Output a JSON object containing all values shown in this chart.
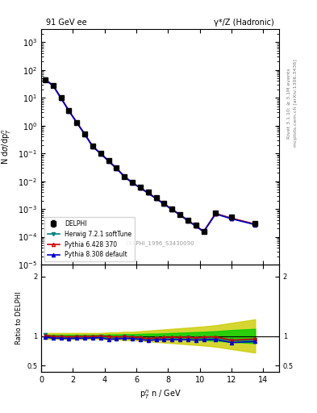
{
  "title_left": "91 GeV ee",
  "title_right": "γ*/Z (Hadronic)",
  "ylabel_main": "N dσ/dp$_T^n$",
  "ylabel_ratio": "Ratio to DELPHI",
  "xlabel": "p$_T^n$ n / GeV",
  "watermark": "DELPHI_1996_S3430090",
  "right_label_top": "Rivet 3.1.10; ≥ 3.1M events",
  "right_label_bottom": "mcplots.cern.ch [arXiv:1306.3436]",
  "data_x": [
    0.25,
    0.75,
    1.25,
    1.75,
    2.25,
    2.75,
    3.25,
    3.75,
    4.25,
    4.75,
    5.25,
    5.75,
    6.25,
    6.75,
    7.25,
    7.75,
    8.25,
    8.75,
    9.25,
    9.75,
    10.25,
    11.0,
    12.0,
    13.5
  ],
  "data_y": [
    45.0,
    28.0,
    10.0,
    3.5,
    1.3,
    0.5,
    0.18,
    0.1,
    0.055,
    0.03,
    0.015,
    0.009,
    0.006,
    0.004,
    0.0025,
    0.0016,
    0.001,
    0.00065,
    0.0004,
    0.00026,
    0.00016,
    0.0007,
    0.0005,
    0.0003
  ],
  "data_yerr": [
    2.0,
    1.5,
    0.5,
    0.2,
    0.07,
    0.03,
    0.012,
    0.007,
    0.004,
    0.002,
    0.001,
    0.0006,
    0.0004,
    0.0003,
    0.00018,
    0.00012,
    8e-05,
    5e-05,
    3e-05,
    2e-05,
    1e-05,
    6e-05,
    5e-05,
    4e-05
  ],
  "herwig_x": [
    0.25,
    0.75,
    1.25,
    1.75,
    2.25,
    2.75,
    3.25,
    3.75,
    4.25,
    4.75,
    5.25,
    5.75,
    6.25,
    6.75,
    7.25,
    7.75,
    8.25,
    8.75,
    9.25,
    9.75,
    10.25,
    11.0,
    12.0,
    13.5
  ],
  "herwig_y": [
    46.0,
    27.5,
    9.8,
    3.4,
    1.28,
    0.49,
    0.177,
    0.099,
    0.054,
    0.029,
    0.0148,
    0.0088,
    0.0058,
    0.0038,
    0.0024,
    0.00155,
    0.00097,
    0.00063,
    0.00039,
    0.00025,
    0.000155,
    0.00068,
    0.00046,
    0.00028
  ],
  "pythia6_x": [
    0.25,
    0.75,
    1.25,
    1.75,
    2.25,
    2.75,
    3.25,
    3.75,
    4.25,
    4.75,
    5.25,
    5.75,
    6.25,
    6.75,
    7.25,
    7.75,
    8.25,
    8.75,
    9.25,
    9.75,
    10.25,
    11.0,
    12.0,
    13.5
  ],
  "pythia6_y": [
    45.5,
    27.8,
    9.9,
    3.45,
    1.29,
    0.495,
    0.179,
    0.1,
    0.0545,
    0.0295,
    0.0149,
    0.00885,
    0.00585,
    0.00382,
    0.00242,
    0.00156,
    0.00098,
    0.000635,
    0.000392,
    0.000252,
    0.000157,
    0.00069,
    0.000465,
    0.000285
  ],
  "pythia8_x": [
    0.25,
    0.75,
    1.25,
    1.75,
    2.25,
    2.75,
    3.25,
    3.75,
    4.25,
    4.75,
    5.25,
    5.75,
    6.25,
    6.75,
    7.25,
    7.75,
    8.25,
    8.75,
    9.25,
    9.75,
    10.25,
    11.0,
    12.0,
    13.5
  ],
  "pythia8_y": [
    44.0,
    27.0,
    9.6,
    3.35,
    1.25,
    0.48,
    0.174,
    0.097,
    0.052,
    0.0285,
    0.0144,
    0.0086,
    0.00565,
    0.0037,
    0.00234,
    0.0015,
    0.00094,
    0.00061,
    0.000376,
    0.000242,
    0.00015,
    0.00066,
    0.000445,
    0.000272
  ],
  "ratio_herwig": [
    1.022,
    0.982,
    0.98,
    0.971,
    0.985,
    0.98,
    0.983,
    0.99,
    0.982,
    0.967,
    0.987,
    0.978,
    0.967,
    0.95,
    0.96,
    0.969,
    0.97,
    0.969,
    0.975,
    0.962,
    0.969,
    0.971,
    0.92,
    0.933
  ],
  "ratio_pythia6": [
    1.011,
    0.993,
    0.99,
    0.986,
    0.992,
    0.99,
    0.994,
    1.0,
    0.991,
    0.983,
    0.993,
    0.983,
    0.975,
    0.955,
    0.968,
    0.975,
    0.98,
    0.977,
    0.98,
    0.969,
    0.981,
    0.986,
    0.93,
    0.95
  ],
  "ratio_pythia8": [
    0.978,
    0.964,
    0.96,
    0.957,
    0.962,
    0.96,
    0.967,
    0.97,
    0.945,
    0.95,
    0.96,
    0.956,
    0.942,
    0.925,
    0.936,
    0.938,
    0.94,
    0.938,
    0.94,
    0.931,
    0.938,
    0.943,
    0.89,
    0.907
  ],
  "ratio_err_inner": [
    0.02,
    0.02,
    0.02,
    0.02,
    0.02,
    0.02,
    0.02,
    0.02,
    0.025,
    0.025,
    0.03,
    0.03,
    0.035,
    0.04,
    0.04,
    0.045,
    0.05,
    0.055,
    0.06,
    0.065,
    0.07,
    0.08,
    0.1,
    0.12
  ],
  "ratio_err_outer": [
    0.05,
    0.05,
    0.05,
    0.05,
    0.05,
    0.05,
    0.05,
    0.05,
    0.06,
    0.06,
    0.07,
    0.07,
    0.08,
    0.09,
    0.1,
    0.11,
    0.12,
    0.13,
    0.14,
    0.15,
    0.16,
    0.18,
    0.22,
    0.28
  ],
  "color_herwig": "#008080",
  "color_pythia6": "#cc0000",
  "color_pythia8": "#0000cc",
  "color_data": "#000000",
  "color_band_inner": "#00cc00",
  "color_band_outer": "#cccc00",
  "ylim_main": [
    1e-05,
    3000
  ],
  "ylim_ratio": [
    0.4,
    2.2
  ],
  "xlim": [
    0,
    15
  ]
}
